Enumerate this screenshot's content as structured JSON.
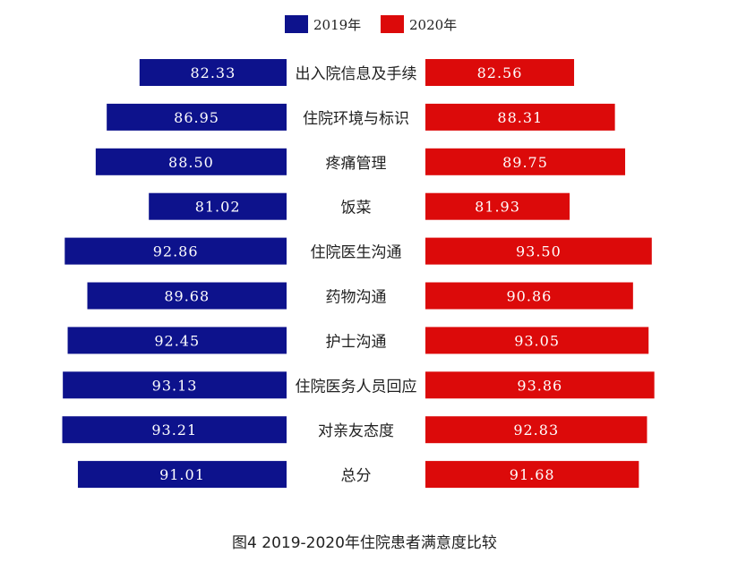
{
  "caption": "图4  2019-2020年住院患者满意度比较",
  "colors": {
    "series_2019": "#0d128c",
    "series_2020": "#dc0a0a",
    "category_text": "#222222",
    "label_text": "#ffffff"
  },
  "chart_data": {
    "type": "bar",
    "orientation": "horizontal-butterfly",
    "legend_position": "top",
    "grid": false,
    "categories": [
      "出入院信息及手续",
      "住院环境与标识",
      "疼痛管理",
      "饭菜",
      "住院医生沟通",
      "药物沟通",
      "护士沟通",
      "住院医务人员回应",
      "对亲友态度",
      "总分"
    ],
    "series": [
      {
        "name": "2019年",
        "values": [
          82.33,
          86.95,
          88.5,
          81.02,
          92.86,
          89.68,
          92.45,
          93.13,
          93.21,
          91.01
        ],
        "labels": [
          "82.33",
          "86.95",
          "88.50",
          "81.02",
          "92.86",
          "89.68",
          "92.45",
          "93.13",
          "93.21",
          "91.01"
        ]
      },
      {
        "name": "2020年",
        "values": [
          82.56,
          88.31,
          89.75,
          81.93,
          93.5,
          90.86,
          93.05,
          93.86,
          92.83,
          91.68
        ],
        "labels": [
          "82.56",
          "88.31",
          "89.75",
          "81.93",
          "93.50",
          "90.86",
          "93.05",
          "93.86",
          "92.83",
          "91.68"
        ]
      }
    ]
  }
}
